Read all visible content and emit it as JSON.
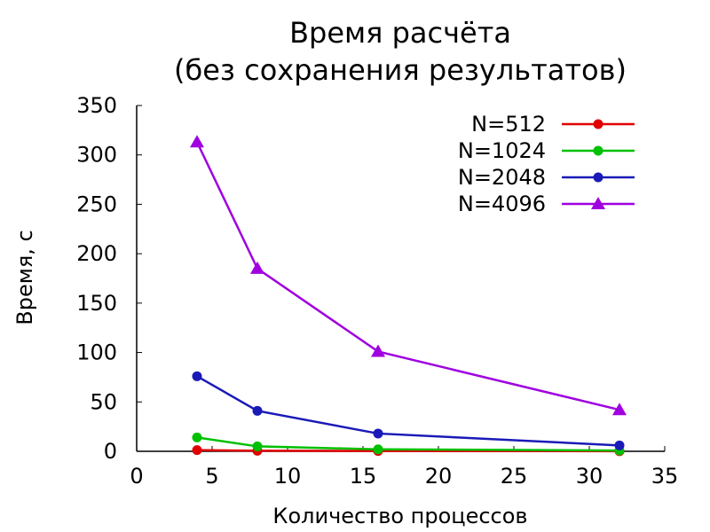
{
  "chart_data": {
    "type": "line",
    "title": [
      "Время расчёта",
      "(без сохранения результатов)"
    ],
    "xlabel": "Количество процессов",
    "ylabel": "Время, с",
    "xlim": [
      0,
      35
    ],
    "ylim": [
      0,
      350
    ],
    "xticks": [
      0,
      5,
      10,
      15,
      20,
      25,
      30,
      35
    ],
    "yticks": [
      0,
      50,
      100,
      150,
      200,
      250,
      300,
      350
    ],
    "grid": false,
    "legend_position": "top-right",
    "series": [
      {
        "name": "N=512",
        "color": "#e00000",
        "marker": "circle",
        "x": [
          4,
          8,
          16,
          32
        ],
        "values": [
          1.2,
          0.6,
          0.3,
          0.15
        ]
      },
      {
        "name": "N=1024",
        "color": "#00c000",
        "marker": "circle",
        "x": [
          4,
          8,
          16,
          32
        ],
        "values": [
          14,
          5,
          2,
          0.8
        ]
      },
      {
        "name": "N=2048",
        "color": "#1a1ab8",
        "marker": "circle",
        "x": [
          4,
          8,
          16,
          32
        ],
        "values": [
          76,
          41,
          18,
          6
        ]
      },
      {
        "name": "N=4096",
        "color": "#a000e0",
        "marker": "triangle",
        "x": [
          4,
          8,
          16,
          32
        ],
        "values": [
          313,
          185,
          101,
          42
        ]
      }
    ]
  }
}
